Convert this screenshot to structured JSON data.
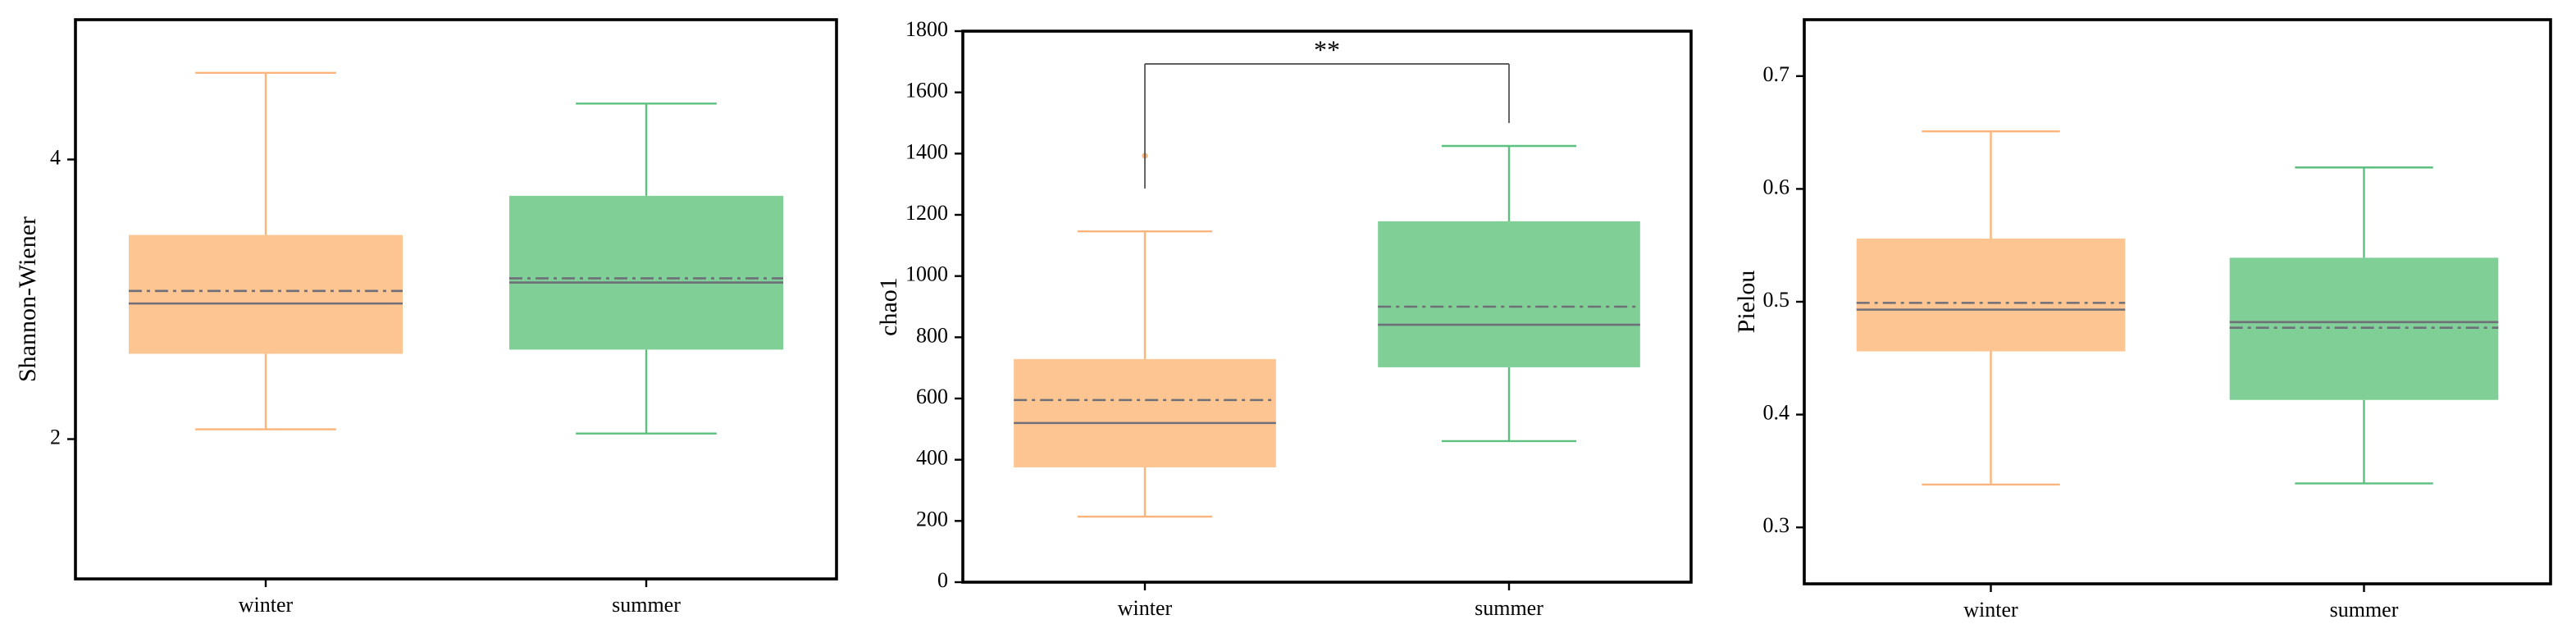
{
  "chart_data": [
    {
      "type": "box",
      "y_label": "Shannon-Wiener",
      "categories": [
        "winter",
        "summer"
      ],
      "colors": [
        "#fdc591",
        "#7fcf97"
      ],
      "whisker_colors": [
        "#fcb47a",
        "#5cc07e"
      ],
      "min": [
        2.07,
        2.04
      ],
      "q1": [
        2.61,
        2.64
      ],
      "median": [
        2.97,
        3.12
      ],
      "q3": [
        3.46,
        3.74
      ],
      "max": [
        4.62,
        4.4
      ],
      "mean": [
        3.06,
        3.15
      ],
      "ylim": [
        1,
        5
      ],
      "yticks": [
        2,
        4
      ]
    },
    {
      "type": "box",
      "y_label": "chao1",
      "categories": [
        "winter",
        "summer"
      ],
      "colors": [
        "#fdc591",
        "#7fcf97"
      ],
      "whisker_colors": [
        "#fcb47a",
        "#5cc07e"
      ],
      "min": [
        214,
        461
      ],
      "q1": [
        375,
        702
      ],
      "median": [
        520,
        841
      ],
      "q3": [
        729,
        1179
      ],
      "max": [
        1146,
        1425
      ],
      "mean": [
        595,
        900
      ],
      "outliers": [
        [
          1393
        ],
        []
      ],
      "annotation": {
        "text": "**",
        "y": 1693,
        "ends": [
          1286,
          1500
        ]
      },
      "ylim": [
        0,
        1800
      ],
      "yticks": [
        0,
        200,
        400,
        600,
        800,
        1000,
        1200,
        1400,
        1600,
        1800
      ]
    },
    {
      "type": "box",
      "y_label": "Pielou",
      "categories": [
        "winter",
        "summer"
      ],
      "colors": [
        "#fdc591",
        "#7fcf97"
      ],
      "whisker_colors": [
        "#fcb47a",
        "#5cc07e"
      ],
      "min": [
        0.338,
        0.339
      ],
      "q1": [
        0.456,
        0.413
      ],
      "median": [
        0.493,
        0.482
      ],
      "q3": [
        0.556,
        0.539
      ],
      "max": [
        0.651,
        0.619
      ],
      "mean": [
        0.499,
        0.477
      ],
      "ylim": [
        0.25,
        0.75
      ],
      "yticks": [
        0.3,
        0.4,
        0.5,
        0.6,
        0.7
      ]
    }
  ]
}
